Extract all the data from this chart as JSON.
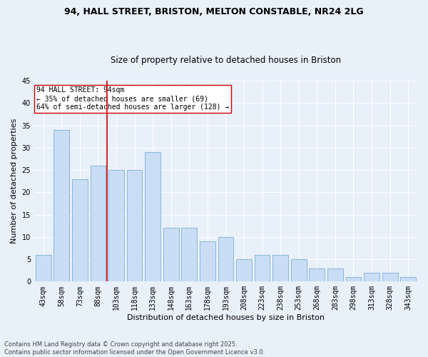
{
  "title_line1": "94, HALL STREET, BRISTON, MELTON CONSTABLE, NR24 2LG",
  "title_line2": "Size of property relative to detached houses in Briston",
  "xlabel": "Distribution of detached houses by size in Briston",
  "ylabel": "Number of detached properties",
  "categories": [
    "43sqm",
    "58sqm",
    "73sqm",
    "88sqm",
    "103sqm",
    "118sqm",
    "133sqm",
    "148sqm",
    "163sqm",
    "178sqm",
    "193sqm",
    "208sqm",
    "223sqm",
    "238sqm",
    "253sqm",
    "268sqm",
    "283sqm",
    "298sqm",
    "313sqm",
    "328sqm",
    "343sqm"
  ],
  "values": [
    6,
    34,
    23,
    26,
    25,
    25,
    29,
    12,
    12,
    9,
    10,
    5,
    6,
    6,
    5,
    3,
    3,
    1,
    2,
    2,
    1
  ],
  "bar_color": "#c9ddf5",
  "bar_edgecolor": "#7aaed6",
  "vline_color": "#cc0000",
  "annotation_text": "94 HALL STREET: 94sqm\n← 35% of detached houses are smaller (69)\n64% of semi-detached houses are larger (128) →",
  "annotation_box_edgecolor": "#cc0000",
  "annotation_box_facecolor": "#ffffff",
  "ylim": [
    0,
    45
  ],
  "yticks": [
    0,
    5,
    10,
    15,
    20,
    25,
    30,
    35,
    40,
    45
  ],
  "footer_text": "Contains HM Land Registry data © Crown copyright and database right 2025.\nContains public sector information licensed under the Open Government Licence v3.0.",
  "bg_color": "#e8f0fa",
  "plot_bg_color": "#e8f0fa",
  "grid_color": "#ffffff",
  "title_fontsize": 9,
  "subtitle_fontsize": 8.5,
  "axis_label_fontsize": 8,
  "tick_fontsize": 7,
  "annotation_fontsize": 7,
  "footer_fontsize": 6
}
